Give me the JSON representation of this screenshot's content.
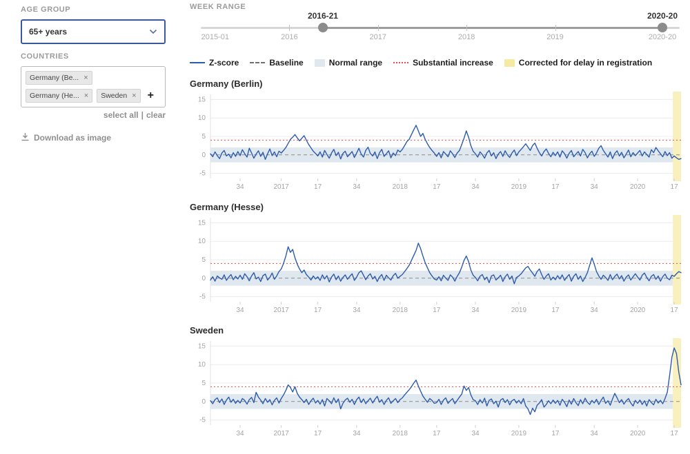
{
  "sidebar": {
    "age_group": {
      "label": "AGE GROUP",
      "value": "65+ years"
    },
    "countries": {
      "label": "COUNTRIES",
      "chips": [
        {
          "label": "Germany (Be..."
        },
        {
          "label": "Germany (He..."
        },
        {
          "label": "Sweden"
        }
      ]
    },
    "select_all_label": "select all",
    "clear_label": "clear",
    "download_label": "Download as image"
  },
  "icons": {
    "remove": "×",
    "add": "+"
  },
  "week_range": {
    "label": "WEEK RANGE",
    "start_label": "2016-21",
    "end_label": "2020-20",
    "start_pct": 25.5,
    "end_pct": 96.4,
    "track_ticks": [
      18.5,
      37,
      55.5,
      74
    ],
    "axis_ticks": [
      {
        "label": "2015-01",
        "pct": 3
      },
      {
        "label": "2016",
        "pct": 18.5
      },
      {
        "label": "2017",
        "pct": 37
      },
      {
        "label": "2018",
        "pct": 55.5
      },
      {
        "label": "2019",
        "pct": 74
      },
      {
        "label": "2020-20",
        "pct": 96.4
      }
    ]
  },
  "legend": {
    "items": [
      {
        "label": "Z-score",
        "marker": "line"
      },
      {
        "label": "Baseline",
        "marker": "dashed-line"
      },
      {
        "label": "Normal range",
        "marker": "box"
      },
      {
        "label": "Substantial increase",
        "marker": "dotted-line"
      },
      {
        "label": "Corrected for delay in registration",
        "marker": "box-yellow"
      }
    ]
  },
  "colors": {
    "zscore": "#2d5ba9",
    "baseline": "#8a8a8a",
    "normal_range": "#dfe7ef",
    "substantial_increase": "#e04f4f",
    "corrected": "#f9f1bd",
    "grid": "#ececec",
    "axis_text": "#a3a3a3"
  },
  "chart_config": {
    "ylim": [
      -6,
      16
    ],
    "yticks": [
      15,
      10,
      5,
      0,
      -5
    ],
    "normal_range": [
      -2,
      2
    ],
    "substantial_increase": 4,
    "corrected_from_index": 203,
    "xticks": [
      {
        "i": 13,
        "label": "34"
      },
      {
        "i": 31,
        "label": "2017"
      },
      {
        "i": 47,
        "label": "17"
      },
      {
        "i": 64,
        "label": "34"
      },
      {
        "i": 83,
        "label": "2018"
      },
      {
        "i": 99,
        "label": "17"
      },
      {
        "i": 116,
        "label": "34"
      },
      {
        "i": 135,
        "label": "2019"
      },
      {
        "i": 151,
        "label": "17"
      },
      {
        "i": 168,
        "label": "34"
      },
      {
        "i": 187,
        "label": "2020"
      },
      {
        "i": 203,
        "label": "17"
      }
    ]
  },
  "chart_data": [
    {
      "type": "line",
      "title": "Germany (Berlin)",
      "series_name": "Z-score",
      "x_range": [
        "2016-21",
        "2020-20"
      ],
      "values": [
        0.3,
        -0.5,
        0.8,
        -0.2,
        -1.0,
        0.5,
        1.2,
        -0.3,
        0.2,
        -0.8,
        0.6,
        -0.4,
        0.9,
        -0.2,
        1.4,
        0.3,
        -0.6,
        1.8,
        0.5,
        -0.9,
        0.2,
        1.1,
        -0.4,
        0.7,
        -1.2,
        0.3,
        1.6,
        -0.2,
        0.8,
        -0.5,
        1.0,
        0.5,
        1.2,
        2.0,
        3.1,
        4.2,
        4.8,
        5.5,
        4.6,
        3.8,
        4.5,
        5.2,
        4.0,
        2.8,
        1.9,
        1.0,
        0.4,
        -0.3,
        0.8,
        -0.6,
        1.2,
        0.1,
        -0.9,
        0.5,
        1.5,
        -0.2,
        0.7,
        -1.1,
        0.4,
        1.0,
        -0.5,
        0.2,
        0.9,
        -0.7,
        0.5,
        1.8,
        0.2,
        -0.6,
        1.2,
        2.1,
        0.4,
        -0.3,
        0.8,
        -1.0,
        0.6,
        1.5,
        -0.4,
        0.3,
        1.1,
        -0.8,
        0.5,
        -0.2,
        1.3,
        0.8,
        1.5,
        2.5,
        3.6,
        4.2,
        5.5,
        6.8,
        8.0,
        6.5,
        5.0,
        5.8,
        4.2,
        3.0,
        2.0,
        1.2,
        0.5,
        -0.4,
        0.6,
        -0.8,
        0.9,
        0.2,
        -0.5,
        1.1,
        0.3,
        -0.7,
        0.5,
        1.2,
        2.8,
        4.5,
        6.5,
        4.8,
        2.5,
        1.0,
        0.3,
        -0.6,
        0.8,
        0.1,
        -0.9,
        0.5,
        1.2,
        -0.3,
        0.6,
        -1.0,
        0.2,
        0.9,
        -0.4,
        1.1,
        0.0,
        -0.7,
        0.5,
        1.3,
        -0.2,
        0.8,
        1.5,
        2.2,
        3.0,
        2.1,
        1.2,
        2.5,
        3.2,
        1.8,
        0.6,
        -0.3,
        0.9,
        1.6,
        0.4,
        -0.5,
        0.7,
        -0.2,
        0.8,
        -0.6,
        1.1,
        0.3,
        -0.9,
        0.4,
        1.2,
        -0.5,
        0.2,
        0.9,
        -0.3,
        1.5,
        0.6,
        -0.8,
        0.3,
        1.0,
        -0.4,
        0.5,
        1.8,
        2.5,
        1.2,
        0.3,
        -0.6,
        0.8,
        -1.0,
        0.4,
        1.1,
        -0.3,
        0.7,
        -0.8,
        0.2,
        1.3,
        -0.5,
        0.6,
        -0.2,
        0.5,
        1.2,
        -0.3,
        0.8,
        0.1,
        -0.6,
        1.4,
        0.6,
        2.0,
        1.1,
        0.3,
        -0.5,
        0.9,
        -0.2,
        0.6,
        -0.9,
        -0.3,
        -0.8,
        -1.2,
        -1.0
      ]
    },
    {
      "type": "line",
      "title": "Germany (Hesse)",
      "series_name": "Z-score",
      "x_range": [
        "2016-21",
        "2020-20"
      ],
      "values": [
        -0.5,
        0.4,
        -0.8,
        0.6,
        0.1,
        -0.3,
        0.9,
        -0.6,
        0.3,
        1.0,
        -0.4,
        0.5,
        -0.2,
        0.8,
        -0.3,
        1.2,
        0.4,
        -0.7,
        0.6,
        1.5,
        -0.2,
        0.3,
        -0.9,
        0.7,
        1.1,
        -0.5,
        0.2,
        1.4,
        -0.3,
        0.6,
        1.8,
        2.5,
        4.0,
        6.0,
        8.5,
        7.0,
        7.8,
        5.5,
        3.8,
        2.5,
        1.5,
        2.2,
        1.0,
        0.3,
        -0.5,
        0.6,
        -0.2,
        0.4,
        -0.6,
        0.9,
        -0.2,
        0.7,
        -1.0,
        0.3,
        1.1,
        -0.4,
        0.6,
        -0.8,
        0.2,
        0.9,
        -0.3,
        0.5,
        1.2,
        -0.6,
        0.3,
        1.5,
        2.0,
        0.8,
        -0.4,
        0.6,
        1.2,
        -0.2,
        0.5,
        -0.9,
        0.3,
        1.0,
        -0.6,
        0.8,
        0.1,
        -0.5,
        0.7,
        1.3,
        0.0,
        0.5,
        1.0,
        1.8,
        2.6,
        3.5,
        4.8,
        6.2,
        7.5,
        9.5,
        8.0,
        6.0,
        4.2,
        2.8,
        1.5,
        0.6,
        -0.2,
        -0.5,
        0.4,
        -0.7,
        0.8,
        0.0,
        -0.6,
        0.9,
        0.3,
        -0.8,
        0.5,
        1.5,
        3.0,
        4.8,
        6.0,
        4.5,
        2.2,
        0.8,
        0.2,
        -0.7,
        0.5,
        1.0,
        -0.4,
        0.3,
        -1.2,
        0.6,
        0.9,
        -0.5,
        0.1,
        0.8,
        -0.9,
        0.4,
        1.1,
        -0.3,
        0.6,
        -1.5,
        0.2,
        0.6,
        1.2,
        2.0,
        2.8,
        3.2,
        2.2,
        1.4,
        0.5,
        1.8,
        2.5,
        1.0,
        -0.3,
        0.6,
        1.2,
        -0.5,
        0.3,
        -0.4,
        0.7,
        -0.2,
        0.9,
        -0.6,
        0.3,
        1.0,
        -0.8,
        0.5,
        1.2,
        -0.3,
        0.6,
        -0.9,
        0.2,
        1.5,
        3.5,
        5.5,
        3.8,
        1.8,
        0.6,
        -0.3,
        0.8,
        0.2,
        -0.6,
        1.0,
        -0.4,
        0.5,
        1.1,
        -0.2,
        0.7,
        -0.8,
        0.3,
        0.9,
        -0.5,
        0.4,
        1.2,
        0.3,
        -0.5,
        0.8,
        1.4,
        0.2,
        -0.7,
        0.5,
        1.0,
        -0.3,
        0.6,
        -0.8,
        0.4,
        1.1,
        0.0,
        -0.4,
        0.8,
        0.5,
        1.2,
        1.8,
        1.5
      ]
    },
    {
      "type": "line",
      "title": "Sweden",
      "series_name": "Z-score",
      "x_range": [
        "2016-21",
        "2020-20"
      ],
      "values": [
        0.2,
        -0.6,
        0.5,
        1.0,
        -0.3,
        0.7,
        -0.8,
        0.4,
        1.2,
        -0.2,
        0.6,
        -0.5,
        0.3,
        -0.4,
        0.8,
        0.3,
        -0.7,
        0.5,
        1.1,
        -0.3,
        2.5,
        1.2,
        0.4,
        -0.6,
        0.8,
        -0.2,
        0.5,
        -0.9,
        0.3,
        1.0,
        -0.4,
        0.8,
        1.8,
        3.0,
        4.5,
        3.8,
        2.6,
        4.0,
        2.2,
        1.2,
        0.5,
        -0.3,
        0.6,
        -0.8,
        0.2,
        0.9,
        -0.4,
        0.3,
        -0.7,
        0.5,
        -1.2,
        0.8,
        0.2,
        -0.6,
        1.0,
        -0.3,
        0.7,
        -2.0,
        -0.5,
        0.4,
        0.9,
        -0.2,
        0.6,
        -0.8,
        0.5,
        1.2,
        -0.3,
        0.7,
        -0.6,
        0.2,
        0.9,
        -0.4,
        0.6,
        1.4,
        -0.2,
        0.5,
        -0.8,
        0.3,
        1.0,
        -0.5,
        0.2,
        0.8,
        -0.3,
        0.5,
        1.0,
        1.8,
        2.5,
        3.2,
        4.0,
        5.0,
        5.8,
        4.2,
        2.8,
        1.5,
        0.6,
        -0.2,
        0.8,
        0.3,
        -0.5,
        -0.3,
        0.6,
        -0.8,
        0.4,
        1.0,
        -0.5,
        0.2,
        0.8,
        -0.6,
        0.3,
        1.2,
        2.0,
        4.2,
        3.0,
        3.8,
        1.8,
        0.5,
        0.2,
        -0.8,
        0.5,
        -0.4,
        0.9,
        -1.2,
        0.3,
        0.7,
        -0.6,
        0.1,
        -1.5,
        0.4,
        0.8,
        -0.3,
        0.5,
        -0.9,
        0.2,
        0.6,
        -0.4,
        0.3,
        -0.6,
        0.8,
        -1.2,
        -2.0,
        -3.5,
        -1.8,
        -2.8,
        -1.0,
        -0.4,
        0.5,
        -1.5,
        -0.8,
        0.2,
        -0.6,
        0.4,
        -0.5,
        0.3,
        -1.0,
        0.6,
        -0.2,
        -1.4,
        0.4,
        -0.7,
        0.8,
        -0.3,
        -1.1,
        0.5,
        -0.6,
        0.9,
        -0.2,
        -0.8,
        0.3,
        -0.4,
        0.6,
        -0.8,
        0.3,
        1.2,
        -0.5,
        0.2,
        -1.0,
        0.7,
        2.2,
        1.0,
        -0.3,
        0.5,
        -0.7,
        0.2,
        0.8,
        -0.4,
        -1.2,
        0.3,
        -0.5,
        0.4,
        -0.8,
        0.2,
        -1.2,
        0.5,
        -0.3,
        -0.9,
        0.6,
        -0.4,
        0.3,
        -0.6,
        0.8,
        2.5,
        7.0,
        12.0,
        14.5,
        13.0,
        8.0,
        4.5
      ]
    }
  ]
}
